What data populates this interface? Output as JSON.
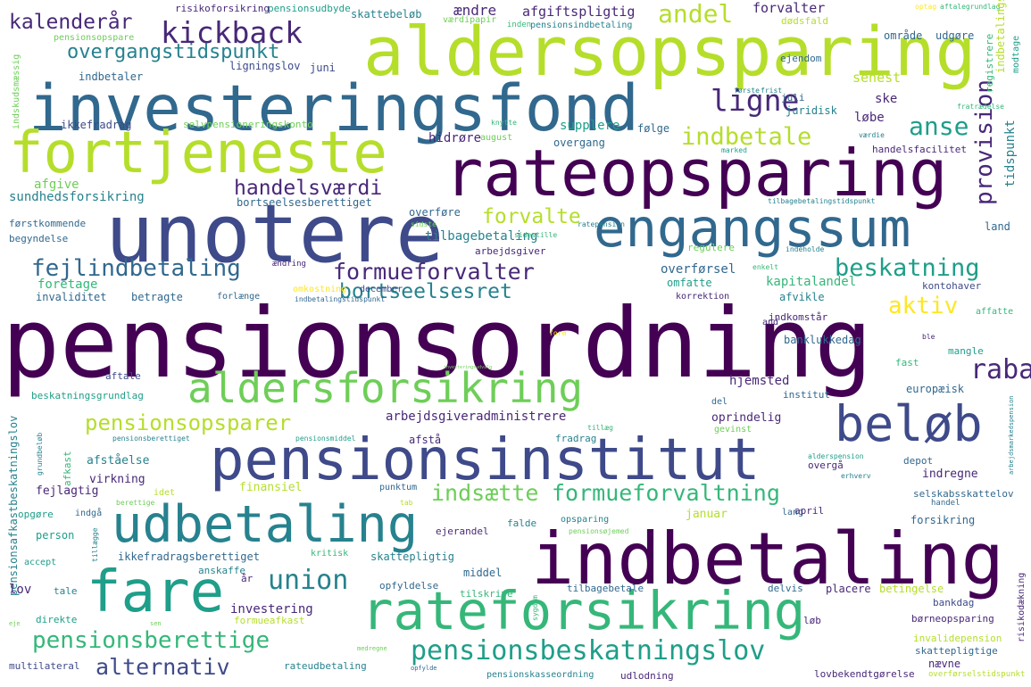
{
  "palette": {
    "dark_purple": "#440154",
    "indigo": "#482878",
    "navy_blue": "#3e4a89",
    "steel_blue": "#31688e",
    "teal": "#26828e",
    "green_teal": "#1f9e89",
    "green": "#35b779",
    "light_green": "#6ece58",
    "lime": "#b5de2b",
    "yellow": "#fde725"
  },
  "words": [
    {
      "text": "pensionsordning",
      "color": "dark_purple"
    },
    {
      "text": "aldersopsparing",
      "color": "lime"
    },
    {
      "text": "investeringsfond",
      "color": "steel_blue"
    },
    {
      "text": "rateopsparing",
      "color": "dark_purple"
    },
    {
      "text": "unotere",
      "color": "navy_blue"
    },
    {
      "text": "fortjeneste",
      "color": "lime"
    },
    {
      "text": "engangssum",
      "color": "steel_blue"
    },
    {
      "text": "indbetaling",
      "color": "dark_purple"
    },
    {
      "text": "pensionsinstitut",
      "color": "navy_blue"
    },
    {
      "text": "rateforsikring",
      "color": "green"
    },
    {
      "text": "udbetaling",
      "color": "teal"
    },
    {
      "text": "fare",
      "color": "green_teal"
    },
    {
      "text": "beløb",
      "color": "navy_blue"
    },
    {
      "text": "aldersforsikring",
      "color": "light_green"
    },
    {
      "text": "kickback",
      "color": "indigo"
    },
    {
      "text": "ligne",
      "color": "indigo"
    },
    {
      "text": "andel",
      "color": "lime"
    },
    {
      "text": "kalenderår",
      "color": "indigo"
    },
    {
      "text": "overgangstidspunkt",
      "color": "teal"
    },
    {
      "text": "indbetale",
      "color": "lime"
    },
    {
      "text": "anse",
      "color": "green_teal"
    },
    {
      "text": "provision",
      "color": "indigo"
    },
    {
      "text": "handelsværdi",
      "color": "indigo"
    },
    {
      "text": "fejlindbetaling",
      "color": "steel_blue"
    },
    {
      "text": "formueforvalter",
      "color": "indigo"
    },
    {
      "text": "beskatning",
      "color": "green_teal"
    },
    {
      "text": "forvalte",
      "color": "lime"
    },
    {
      "text": "bortseelsesret",
      "color": "teal"
    },
    {
      "text": "aktiv",
      "color": "yellow"
    },
    {
      "text": "rabat",
      "color": "indigo"
    },
    {
      "text": "pensionsopsparer",
      "color": "lime"
    },
    {
      "text": "indsætte",
      "color": "light_green"
    },
    {
      "text": "formueforvaltning",
      "color": "green"
    },
    {
      "text": "union",
      "color": "teal"
    },
    {
      "text": "pensionsberettige",
      "color": "green"
    },
    {
      "text": "pensionsbeskatningslov",
      "color": "green_teal"
    },
    {
      "text": "alternativ",
      "color": "navy_blue"
    },
    {
      "text": "risikoforsikring",
      "color": "indigo"
    },
    {
      "text": "pensionsudbyde",
      "color": "green_teal"
    },
    {
      "text": "skattebeløb",
      "color": "teal"
    },
    {
      "text": "ændre",
      "color": "indigo"
    },
    {
      "text": "afgiftspligtig",
      "color": "indigo"
    },
    {
      "text": "forvalter",
      "color": "indigo"
    },
    {
      "text": "aftalegrundlag",
      "color": "green"
    },
    {
      "text": "optag",
      "color": "yellow"
    },
    {
      "text": "pensionsopspare",
      "color": "light_green"
    },
    {
      "text": "værdipapir",
      "color": "light_green"
    },
    {
      "text": "indbetalingslov",
      "color": "lime"
    },
    {
      "text": "indskudsmæssig",
      "color": "light_green"
    },
    {
      "text": "ligningslov",
      "color": "navy_blue"
    },
    {
      "text": "juni",
      "color": "navy_blue"
    },
    {
      "text": "indbetaler",
      "color": "steel_blue"
    },
    {
      "text": "ikkefradrag",
      "color": "navy_blue"
    },
    {
      "text": "selvpensioneringskonto",
      "color": "light_green"
    },
    {
      "text": "dødsfald",
      "color": "lime"
    },
    {
      "text": "område",
      "color": "steel_blue"
    },
    {
      "text": "udgøre",
      "color": "steel_blue"
    },
    {
      "text": "registrere",
      "color": "green"
    },
    {
      "text": "modtage",
      "color": "green_teal"
    },
    {
      "text": "inden",
      "color": "green"
    },
    {
      "text": "pensionsindbetaling",
      "color": "teal"
    },
    {
      "text": "ejendom",
      "color": "steel_blue"
    },
    {
      "text": "senest",
      "color": "lime"
    },
    {
      "text": "ske",
      "color": "indigo"
    },
    {
      "text": "løbe",
      "color": "indigo"
    },
    {
      "text": "juli",
      "color": "steel_blue"
    },
    {
      "text": "juridisk",
      "color": "teal"
    },
    {
      "text": "første",
      "color": "teal"
    },
    {
      "text": "frist",
      "color": "teal"
    },
    {
      "text": "fratrædelse",
      "color": "green"
    },
    {
      "text": "supplere",
      "color": "green_teal"
    },
    {
      "text": "følge",
      "color": "steel_blue"
    },
    {
      "text": "knytte",
      "color": "green"
    },
    {
      "text": "værdie",
      "color": "teal"
    },
    {
      "text": "tidspunkt",
      "color": "teal"
    },
    {
      "text": "hidrøre",
      "color": "indigo"
    },
    {
      "text": "august",
      "color": "light_green"
    },
    {
      "text": "overgang",
      "color": "steel_blue"
    },
    {
      "text": "handelsfacilitet",
      "color": "indigo"
    },
    {
      "text": "marked",
      "color": "green_teal"
    },
    {
      "text": "afgive",
      "color": "light_green"
    },
    {
      "text": "sundhedsforsikring",
      "color": "teal"
    },
    {
      "text": "bortseelsesberettiget",
      "color": "steel_blue"
    },
    {
      "text": "tilbagebetalingstidspunkt",
      "color": "teal"
    },
    {
      "text": "førstkommende",
      "color": "steel_blue"
    },
    {
      "text": "begyndelse",
      "color": "steel_blue"
    },
    {
      "text": "overføre",
      "color": "steel_blue"
    },
    {
      "text": "sidste",
      "color": "light_green"
    },
    {
      "text": "ratepension",
      "color": "teal"
    },
    {
      "text": "tilbagebetaling",
      "color": "teal"
    },
    {
      "text": "sidestille",
      "color": "green"
    },
    {
      "text": "arbejdsgiver",
      "color": "indigo"
    },
    {
      "text": "regulere",
      "color": "light_green"
    },
    {
      "text": "indeholde",
      "color": "teal"
    },
    {
      "text": "land",
      "color": "steel_blue"
    },
    {
      "text": "ændring",
      "color": "indigo"
    },
    {
      "text": "foretage",
      "color": "green"
    },
    {
      "text": "overførsel",
      "color": "steel_blue"
    },
    {
      "text": "enkelt",
      "color": "green"
    },
    {
      "text": "omfatte",
      "color": "green_teal"
    },
    {
      "text": "kapitalandel",
      "color": "green"
    },
    {
      "text": "kontohaver",
      "color": "navy_blue"
    },
    {
      "text": "invaliditet",
      "color": "steel_blue"
    },
    {
      "text": "betragte",
      "color": "steel_blue"
    },
    {
      "text": "forlænge",
      "color": "steel_blue"
    },
    {
      "text": "omkostning",
      "color": "yellow"
    },
    {
      "text": "december",
      "color": "navy_blue"
    },
    {
      "text": "indbetalingstidspunkt",
      "color": "steel_blue"
    },
    {
      "text": "korrektion",
      "color": "indigo"
    },
    {
      "text": "afvikle",
      "color": "teal"
    },
    {
      "text": "indkomstår",
      "color": "indigo"
    },
    {
      "text": "affatte",
      "color": "green"
    },
    {
      "text": "and",
      "color": "indigo"
    },
    {
      "text": "form",
      "color": "yellow"
    },
    {
      "text": "ble",
      "color": "indigo"
    },
    {
      "text": "banklukkedag",
      "color": "steel_blue"
    },
    {
      "text": "mangle",
      "color": "green_teal"
    },
    {
      "text": "fast",
      "color": "green"
    },
    {
      "text": "aftale",
      "color": "navy_blue"
    },
    {
      "text": "investeringsudvalg",
      "color": "light_green"
    },
    {
      "text": "beskatningsgrundlag",
      "color": "green_teal"
    },
    {
      "text": "hjemsted",
      "color": "indigo"
    },
    {
      "text": "del",
      "color": "steel_blue"
    },
    {
      "text": "institut",
      "color": "steel_blue"
    },
    {
      "text": "europæisk",
      "color": "steel_blue"
    },
    {
      "text": "arbejdsgiveradministrere",
      "color": "indigo"
    },
    {
      "text": "oprindelig",
      "color": "indigo"
    },
    {
      "text": "pensionsafkastbeskatningslov",
      "color": "teal"
    },
    {
      "text": "grundbeløb",
      "color": "teal"
    },
    {
      "text": "afkast",
      "color": "green"
    },
    {
      "text": "pensionsberettiget",
      "color": "teal"
    },
    {
      "text": "pensionsmiddel",
      "color": "green_teal"
    },
    {
      "text": "tillæg",
      "color": "green"
    },
    {
      "text": "afstå",
      "color": "indigo"
    },
    {
      "text": "fradrag",
      "color": "teal"
    },
    {
      "text": "gevinst",
      "color": "light_green"
    },
    {
      "text": "afståelse",
      "color": "teal"
    },
    {
      "text": "virkning",
      "color": "indigo"
    },
    {
      "text": "alderspension",
      "color": "green_teal"
    },
    {
      "text": "overgå",
      "color": "indigo"
    },
    {
      "text": "depot",
      "color": "steel_blue"
    },
    {
      "text": "indregne",
      "color": "indigo"
    },
    {
      "text": "arbejdsmarkedspension",
      "color": "teal"
    },
    {
      "text": "fejlagtig",
      "color": "indigo"
    },
    {
      "text": "finansiel",
      "color": "lime"
    },
    {
      "text": "punktum",
      "color": "steel_blue"
    },
    {
      "text": "erhverv",
      "color": "teal"
    },
    {
      "text": "selskabsskattelov",
      "color": "steel_blue"
    },
    {
      "text": "idet",
      "color": "lime"
    },
    {
      "text": "berettige",
      "color": "light_green"
    },
    {
      "text": "tab",
      "color": "lime"
    },
    {
      "text": "handel",
      "color": "steel_blue"
    },
    {
      "text": "opgøre",
      "color": "green_teal"
    },
    {
      "text": "indgå",
      "color": "steel_blue"
    },
    {
      "text": "januar",
      "color": "lime"
    },
    {
      "text": "lang",
      "color": "steel_blue"
    },
    {
      "text": "april",
      "color": "indigo"
    },
    {
      "text": "person",
      "color": "green_teal"
    },
    {
      "text": "falde",
      "color": "teal"
    },
    {
      "text": "opsparing",
      "color": "teal"
    },
    {
      "text": "ejerandel",
      "color": "indigo"
    },
    {
      "text": "forsikring",
      "color": "steel_blue"
    },
    {
      "text": "pensionsøjemed",
      "color": "light_green"
    },
    {
      "text": "tillægge",
      "color": "teal"
    },
    {
      "text": "accept",
      "color": "green_teal"
    },
    {
      "text": "ikkefradragsberettiget",
      "color": "steel_blue"
    },
    {
      "text": "anskaffe",
      "color": "teal"
    },
    {
      "text": "kritisk",
      "color": "green"
    },
    {
      "text": "skattepligtig",
      "color": "teal"
    },
    {
      "text": "middel",
      "color": "steel_blue"
    },
    {
      "text": "risikodækning",
      "color": "indigo"
    },
    {
      "text": "lov",
      "color": "indigo"
    },
    {
      "text": "år",
      "color": "indigo"
    },
    {
      "text": "tale",
      "color": "teal"
    },
    {
      "text": "opfyldelse",
      "color": "steel_blue"
    },
    {
      "text": "tilskrive",
      "color": "green"
    },
    {
      "text": "tilbagebetale",
      "color": "steel_blue"
    },
    {
      "text": "delvis",
      "color": "steel_blue"
    },
    {
      "text": "placere",
      "color": "indigo"
    },
    {
      "text": "betingelse",
      "color": "lime"
    },
    {
      "text": "sygdom",
      "color": "green"
    },
    {
      "text": "bankdag",
      "color": "navy_blue"
    },
    {
      "text": "børneopsparing",
      "color": "indigo"
    },
    {
      "text": "direkte",
      "color": "green_teal"
    },
    {
      "text": "investering",
      "color": "indigo"
    },
    {
      "text": "formueafkast",
      "color": "lime"
    },
    {
      "text": "løb",
      "color": "indigo"
    },
    {
      "text": "invalidepension",
      "color": "lime"
    },
    {
      "text": "eje",
      "color": "light_green"
    },
    {
      "text": "sen",
      "color": "light_green"
    },
    {
      "text": "skattepligtige",
      "color": "steel_blue"
    },
    {
      "text": "medregne",
      "color": "light_green"
    },
    {
      "text": "multilateral",
      "color": "navy_blue"
    },
    {
      "text": "rateudbetaling",
      "color": "teal"
    },
    {
      "text": "opfylde",
      "color": "steel_blue"
    },
    {
      "text": "pensionskasseordning",
      "color": "teal"
    },
    {
      "text": "udlodning",
      "color": "indigo"
    },
    {
      "text": "lovbekendtgørelse",
      "color": "indigo"
    },
    {
      "text": "nævne",
      "color": "indigo"
    },
    {
      "text": "overførselstidspunkt",
      "color": "lime"
    }
  ]
}
